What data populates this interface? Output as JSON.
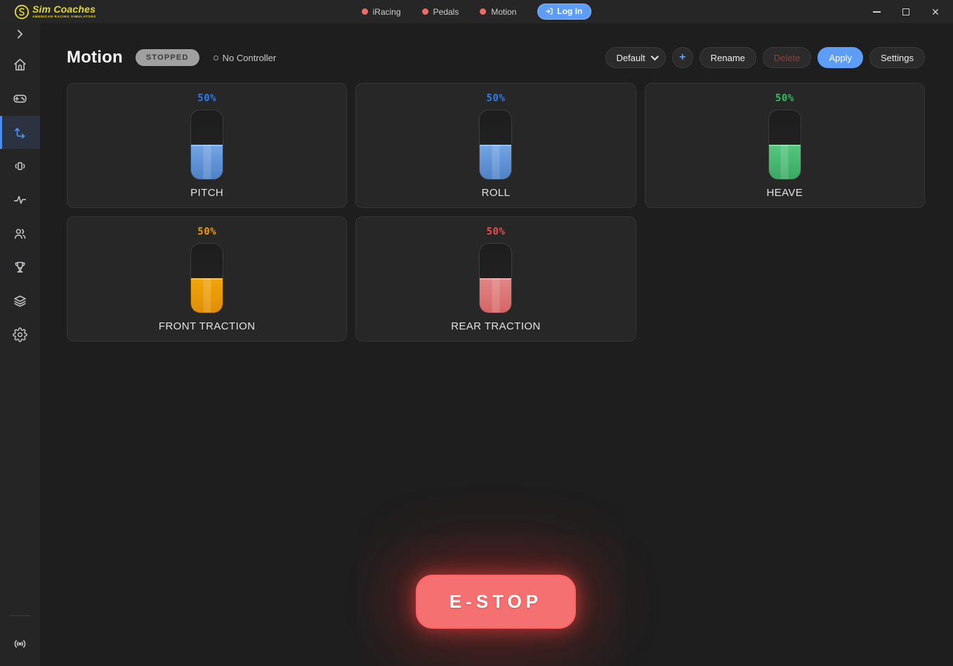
{
  "app": {
    "logo": {
      "text": "Sim Coaches",
      "tagline": "AMERICAN RACING SIMULATORS",
      "color": "#e4da2f"
    }
  },
  "topbar": {
    "status_items": [
      {
        "label": "iRacing",
        "status_color": "#ef6b68"
      },
      {
        "label": "Pedals",
        "status_color": "#ef6b68"
      },
      {
        "label": "Motion",
        "status_color": "#ef6b68"
      }
    ],
    "login": {
      "label": "Log In",
      "color": "#5d9df7",
      "icon": "login-arrow-icon"
    },
    "window_controls": [
      "minimize-icon",
      "maximize-icon",
      "close-icon"
    ]
  },
  "sidebar": {
    "icons": [
      "chevron-right-icon",
      "home-icon",
      "gamepad-icon",
      "motion-axes-icon",
      "vibration-icon",
      "activity-icon",
      "users-icon",
      "trophy-icon",
      "layers-icon",
      "gear-icon",
      "broadcast-icon"
    ],
    "active_item": "motion-axes-icon",
    "active_color": "#4d8df0"
  },
  "header": {
    "title": "Motion",
    "status_badge": "STOPPED",
    "controller_status": "No Controller"
  },
  "toolbar": {
    "preset_select_value": "Default",
    "add_label": "+",
    "rename_label": "Rename",
    "delete_label": "Delete",
    "apply_label": "Apply",
    "settings_label": "Settings",
    "apply_color": "#5d9df7",
    "delete_disabled": true
  },
  "gauges": [
    {
      "label": "PITCH",
      "value_text": "50%",
      "percent": 50,
      "text_color": "#2e7bf0",
      "fill_light": "#73a6e6",
      "fill_dark": "#4f81c6"
    },
    {
      "label": "ROLL",
      "value_text": "50%",
      "percent": 50,
      "text_color": "#2e7bf0",
      "fill_light": "#73a6e6",
      "fill_dark": "#4f81c6"
    },
    {
      "label": "HEAVE",
      "value_text": "50%",
      "percent": 50,
      "text_color": "#2fbd5e",
      "fill_light": "#55c781",
      "fill_dark": "#3aa861"
    },
    {
      "label": "FRONT TRACTION",
      "value_text": "50%",
      "percent": 50,
      "text_color": "#ef9b06",
      "fill_light": "#f2a60e",
      "fill_dark": "#df8e00"
    },
    {
      "label": "REAR TRACTION",
      "value_text": "50%",
      "percent": 50,
      "text_color": "#ea4c4c",
      "fill_light": "#e28585",
      "fill_dark": "#d66565"
    }
  ],
  "estop": {
    "label": "E-STOP",
    "color": "#f57070",
    "glow_color": "#ff3c3c"
  }
}
